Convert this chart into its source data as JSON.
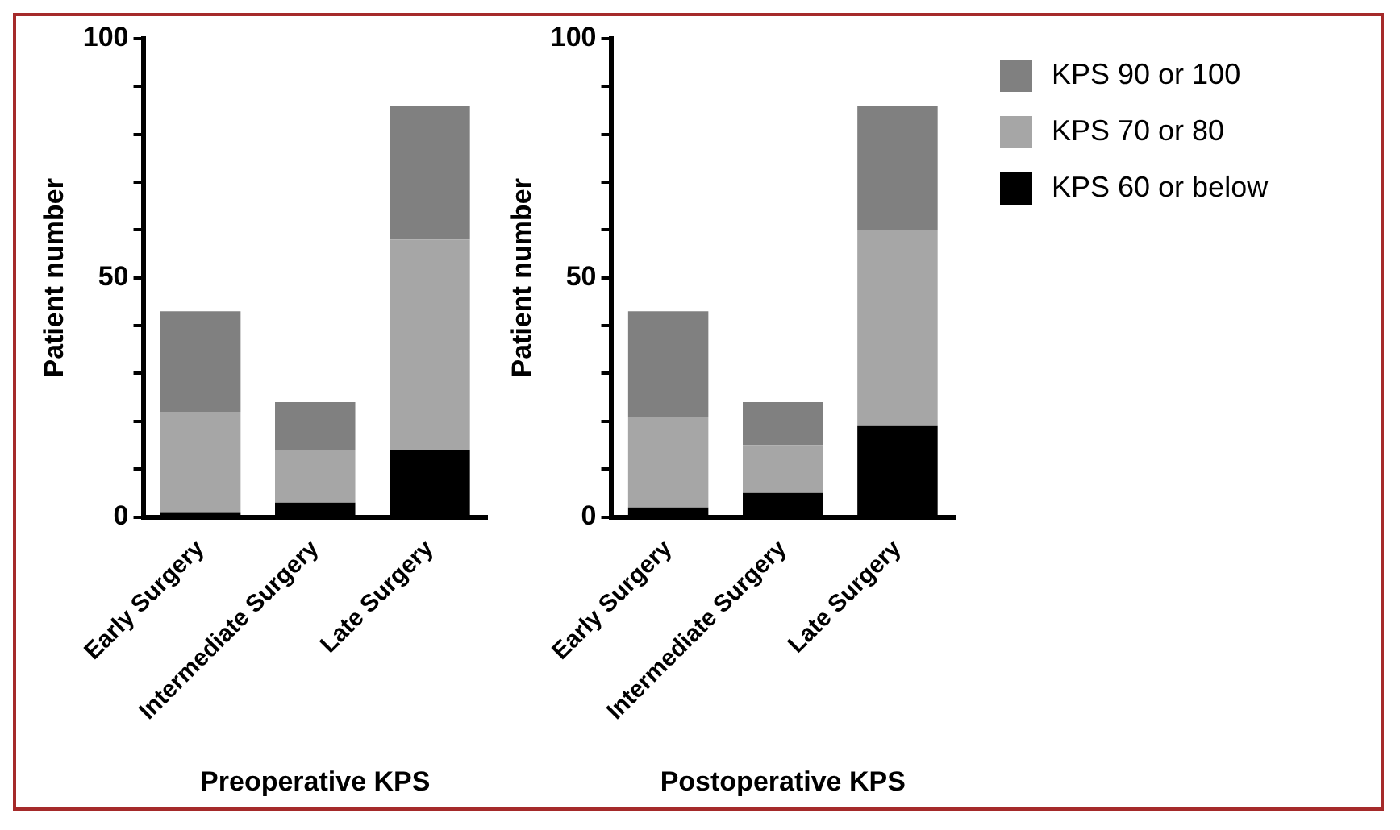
{
  "chart_data": [
    {
      "type": "bar",
      "xlabel": "Preoperative KPS",
      "ylabel": "Patient number",
      "categories": [
        "Early Surgery",
        "Intermediate Surgery",
        "Late Surgery"
      ],
      "stacked": true,
      "ylim": [
        0,
        100
      ],
      "yticks": [
        0,
        {
          "value": 10,
          "label": null
        },
        {
          "value": 20,
          "label": null
        },
        {
          "value": 30,
          "label": null
        },
        {
          "value": 40,
          "label": null
        },
        50,
        {
          "value": 60,
          "label": null
        },
        {
          "value": 70,
          "label": null
        },
        {
          "value": 80,
          "label": null
        },
        {
          "value": 90,
          "label": null
        },
        100
      ],
      "grid": false,
      "legend": false,
      "series": [
        {
          "color": "#000000",
          "values": [
            1,
            3,
            14
          ]
        },
        {
          "color": "#a6a6a6",
          "values": [
            21,
            11,
            44
          ]
        },
        {
          "color": "#808080",
          "values": [
            21,
            10,
            28
          ]
        }
      ]
    },
    {
      "type": "bar",
      "xlabel": "Postoperative KPS",
      "ylabel": "Patient number",
      "categories": [
        "Early Surgery",
        "Intermediate Surgery",
        "Late Surgery"
      ],
      "stacked": true,
      "ylim": [
        0,
        100
      ],
      "yticks": [
        0,
        {
          "value": 10,
          "label": null
        },
        {
          "value": 20,
          "label": null
        },
        {
          "value": 30,
          "label": null
        },
        {
          "value": 40,
          "label": null
        },
        50,
        {
          "value": 60,
          "label": null
        },
        {
          "value": 70,
          "label": null
        },
        {
          "value": 80,
          "label": null
        },
        {
          "value": 90,
          "label": null
        },
        100
      ],
      "grid": false,
      "legend": "right",
      "series": [
        {
          "name": "KPS 60 or below",
          "color": "#000000",
          "values": [
            2,
            5,
            19
          ]
        },
        {
          "name": "KPS 70 or 80",
          "color": "#a6a6a6",
          "values": [
            19,
            10,
            41
          ]
        },
        {
          "name": "KPS 90 or 100",
          "color": "#808080",
          "values": [
            22,
            9,
            26
          ]
        }
      ]
    }
  ]
}
